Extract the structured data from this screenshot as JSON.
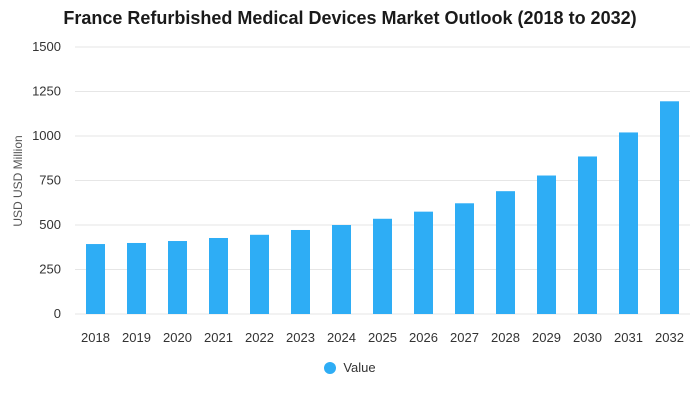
{
  "colors": {
    "bar": "#2eadf5",
    "grid": "#e6e6e6",
    "axis_text": "#333333",
    "title": "#1a1a1a"
  },
  "chart_data": {
    "type": "bar",
    "title": "France Refurbished Medical Devices Market Outlook (2018 to 2032)",
    "xlabel": "",
    "ylabel": "USD USD Million",
    "categories": [
      "2018",
      "2019",
      "2020",
      "2021",
      "2022",
      "2023",
      "2024",
      "2025",
      "2026",
      "2027",
      "2028",
      "2029",
      "2030",
      "2031",
      "2032"
    ],
    "series": [
      {
        "name": "Value",
        "values": [
          393,
          399,
          410,
          427,
          445,
          472,
          500,
          535,
          575,
          622,
          690,
          778,
          885,
          1020,
          1195
        ]
      }
    ],
    "ylim": [
      0,
      1500
    ],
    "yticks": [
      "0",
      "250",
      "500",
      "750",
      "1000",
      "1250",
      "1500"
    ],
    "grid": true,
    "legend_position": "bottom-center"
  }
}
